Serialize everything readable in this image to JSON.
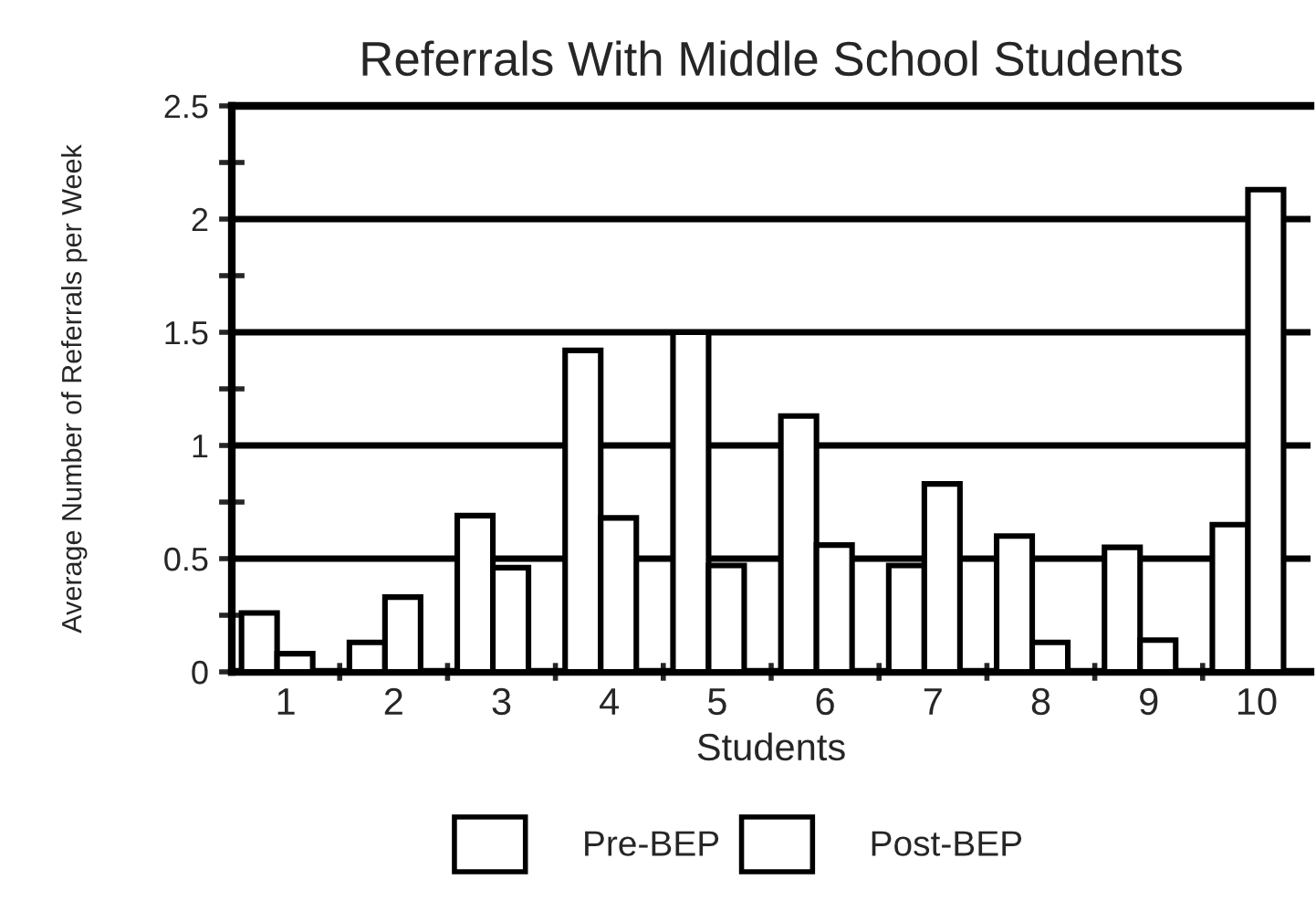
{
  "chart_data": {
    "type": "bar",
    "title": "Referrals With Middle School Students",
    "xlabel": "Students",
    "ylabel": "Average Number of Referrals per Week",
    "categories": [
      "1",
      "2",
      "3",
      "4",
      "5",
      "6",
      "7",
      "8",
      "9",
      "10"
    ],
    "series": [
      {
        "name": "Pre-BEP",
        "color": "#ffffff",
        "values": [
          0.26,
          0.13,
          0.69,
          1.42,
          1.5,
          1.13,
          0.47,
          0.6,
          0.55,
          0.65
        ]
      },
      {
        "name": "Post-BEP",
        "color": "#ffffff",
        "values": [
          0.08,
          0.33,
          0.46,
          0.68,
          0.47,
          0.56,
          0.83,
          0.13,
          0.14,
          2.13
        ]
      }
    ],
    "ylim": [
      0,
      2.5
    ],
    "yticks": [
      0,
      {
        "value": 0.25,
        "label": null
      },
      0.5,
      {
        "value": 0.75,
        "label": null
      },
      1,
      {
        "value": 1.25,
        "label": null
      },
      1.5,
      {
        "value": 1.75,
        "label": null
      },
      2,
      {
        "value": 2.25,
        "label": null
      },
      2.5
    ],
    "grid": "y",
    "legend": "bottom"
  }
}
